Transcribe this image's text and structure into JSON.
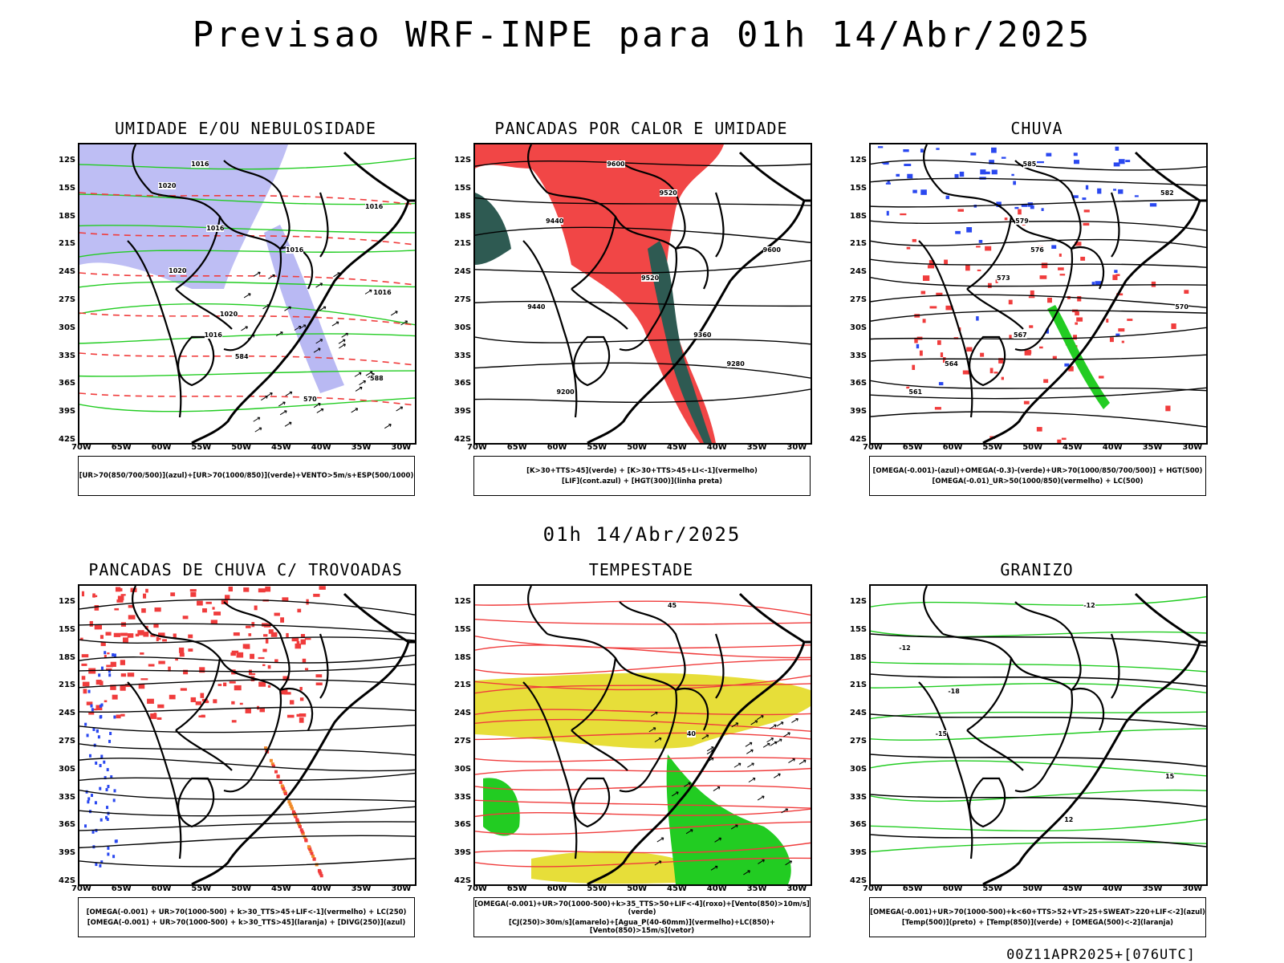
{
  "header": {
    "title": "Previsao WRF-INPE  para 01h 14/Abr/2025",
    "mid_time": "01h 14/Abr/2025",
    "footer": "00Z11APR2025+[076UTC]"
  },
  "axes": {
    "lat_labels": [
      "12S",
      "15S",
      "18S",
      "21S",
      "24S",
      "27S",
      "30S",
      "33S",
      "36S",
      "39S",
      "42S"
    ],
    "lon_labels": [
      "70W",
      "65W",
      "60W",
      "55W",
      "50W",
      "45W",
      "40W",
      "35W",
      "30W"
    ]
  },
  "panels": [
    {
      "title": "UMIDADE E/OU NEBULOSIDADE",
      "legend": [
        "[UR>70(850/700/500)](azul)+[UR>70(1000/850)](verde)+VENTO>5m/s+ESP(500/1000)"
      ],
      "contour_labels": [
        "1016",
        "1020",
        "1016",
        "1016",
        "1016",
        "1020",
        "1016",
        "1020",
        "1016",
        "584",
        "588",
        "570"
      ]
    },
    {
      "title": "PANCADAS POR CALOR E UMIDADE",
      "legend": [
        "[K>30+TTS>45](verde) + [K>30+TTS>45+LI<-1](vermelho)",
        "[LIF](cont.azul) + [HGT(300)](linha preta)"
      ],
      "contour_labels": [
        "9600",
        "9520",
        "9440",
        "9600",
        "9520",
        "9440",
        "9360",
        "9280",
        "9200"
      ]
    },
    {
      "title": "CHUVA",
      "legend": [
        "[OMEGA(-0.001)-(azul)+OMEGA(-0.3)-(verde)+UR>70(1000/850/700/500)] + HGT(500)",
        "[OMEGA(-0.01)_UR>50(1000/850)(vermelho) + LC(500)"
      ],
      "contour_labels": [
        "585",
        "582",
        "579",
        "576",
        "573",
        "570",
        "567",
        "564",
        "561"
      ]
    },
    {
      "title": "PANCADAS DE CHUVA C/ TROVOADAS",
      "legend": [
        "[OMEGA(-0.001) + UR>70(1000-500) + k>30_TTS>45+LIF<-1](vermelho) + LC(250)",
        "[OMEGA(-0.001) + UR>70(1000-500) + k>30_TTS>45](laranja) + [DIVG(250)](azul)"
      ],
      "contour_labels": []
    },
    {
      "title": "TEMPESTADE",
      "legend": [
        "[OMEGA(-0.001)+UR>70(1000-500)+k>35_TTS>50+LIF<-4](roxo)+[Vento(850)>10m/s](verde)",
        "[CJ(250)>30m/s](amarelo)+[Agua_P(40-60mm)](vermelho)+LC(850)+[Vento(850)>15m/s](vetor)"
      ],
      "contour_labels": [
        "45",
        "40"
      ]
    },
    {
      "title": "GRANIZO",
      "legend": [
        "[OMEGA(-0.001)+UR>70(1000-500)+k<60+TTS>52+VT>25+SWEAT>220+LIF<-2](azul)",
        "[Temp(500)](preto) + [Temp(850)](verde) + [OMEGA(500)<-2](laranja)"
      ],
      "contour_labels": [
        "-12",
        "-12",
        "-18",
        "-15",
        "15",
        "12"
      ]
    }
  ],
  "colors": {
    "blue_area": "#a8a8f0",
    "green_line": "#22cc22",
    "red": "#f03c3c",
    "dark_green": "#2e5a52",
    "yellow": "#e6dc2e",
    "orange": "#f08a28",
    "blue": "#2a48f0"
  }
}
